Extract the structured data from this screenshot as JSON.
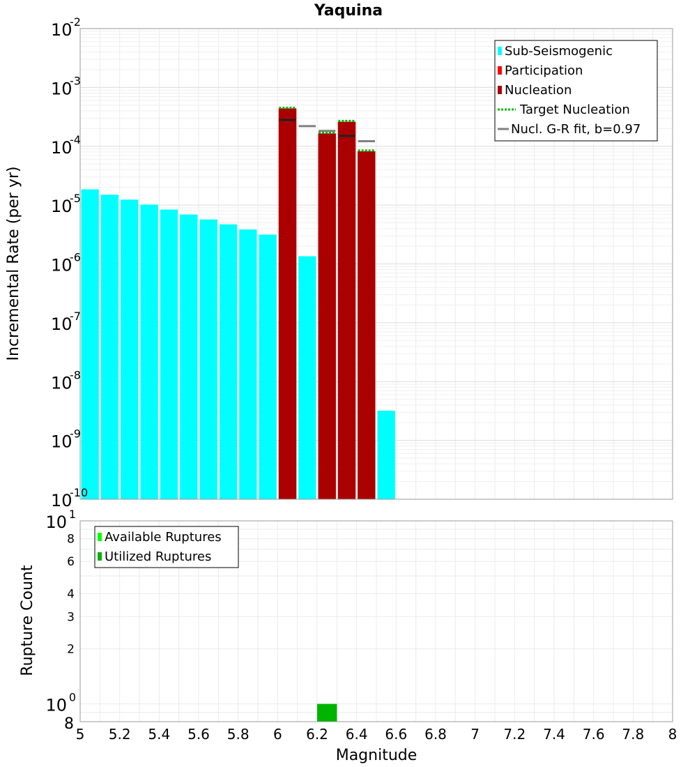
{
  "chart_data": [
    {
      "type": "bar",
      "title": "Yaquina",
      "ylabel": "Incremental Rate (per yr)",
      "xlabel": "",
      "y_scale": "log",
      "ylim": [
        1e-10,
        0.01
      ],
      "xlim": [
        5,
        8
      ],
      "y_ticks": [
        {
          "base": "10",
          "exp": "-2",
          "value": 0.01
        },
        {
          "base": "10",
          "exp": "-3",
          "value": 0.001
        },
        {
          "base": "10",
          "exp": "-4",
          "value": 0.0001
        },
        {
          "base": "10",
          "exp": "-5",
          "value": 1e-05
        },
        {
          "base": "10",
          "exp": "-6",
          "value": 1e-06
        },
        {
          "base": "10",
          "exp": "-7",
          "value": 1e-07
        },
        {
          "base": "10",
          "exp": "-8",
          "value": 1e-08
        },
        {
          "base": "10",
          "exp": "-9",
          "value": 1e-09
        },
        {
          "base": "10",
          "exp": "-10",
          "value": 1e-10
        }
      ],
      "bin_width": 0.1,
      "legend_position": "top-right",
      "legend": [
        {
          "label": "Sub-Seismogenic",
          "color": "#00ffff",
          "style": "bar"
        },
        {
          "label": "Participation",
          "color": "#ff0000",
          "style": "bar"
        },
        {
          "label": "Nucleation",
          "color": "#aa0000",
          "style": "bar"
        },
        {
          "label": "Target Nucleation",
          "color": "#00bb00",
          "style": "dotted"
        },
        {
          "label": "Nucl. G-R fit, b=0.97",
          "color": "#808080",
          "style": "line"
        }
      ],
      "series": [
        {
          "name": "Sub-Seismogenic",
          "color": "#00ffff",
          "x": [
            5.05,
            5.15,
            5.25,
            5.35,
            5.45,
            5.55,
            5.65,
            5.75,
            5.85,
            5.95,
            6.15,
            6.55
          ],
          "values": [
            1.85e-05,
            1.5e-05,
            1.24e-05,
            1.02e-05,
            8.4e-06,
            6.9e-06,
            5.7e-06,
            4.7e-06,
            3.85e-06,
            3.15e-06,
            1.35e-06,
            3.2e-09
          ]
        },
        {
          "name": "Participation",
          "color": "#ff0000",
          "x": [
            6.05,
            6.25,
            6.35,
            6.45
          ],
          "values": [
            0.00044,
            0.000165,
            0.00026,
            8.2e-05
          ]
        },
        {
          "name": "Nucleation",
          "color": "#aa0000",
          "x": [
            6.05,
            6.25,
            6.35,
            6.45
          ],
          "values": [
            0.00044,
            0.000165,
            0.00026,
            8.2e-05
          ]
        },
        {
          "name": "Target Nucleation",
          "color": "#00bb00",
          "x": [
            6.05,
            6.25,
            6.35,
            6.45
          ],
          "values": [
            0.00045,
            0.00017,
            0.00027,
            8.5e-05
          ]
        },
        {
          "name": "Nucl. G-R fit, b=0.97",
          "color": "#808080",
          "x": [
            6.05,
            6.15,
            6.25,
            6.35,
            6.45
          ],
          "values": [
            0.00028,
            0.00022,
            0.000182,
            0.00015,
            0.000122
          ]
        }
      ]
    },
    {
      "type": "bar",
      "title": "",
      "ylabel": "Rupture Count",
      "xlabel": "Magnitude",
      "y_scale": "log",
      "ylim": [
        0.8,
        10
      ],
      "xlim": [
        5,
        8
      ],
      "x_ticks": [
        "5",
        "5.2",
        "5.4",
        "5.6",
        "5.8",
        "6",
        "6.2",
        "6.4",
        "6.6",
        "6.8",
        "7",
        "7.2",
        "7.4",
        "7.6",
        "7.8",
        "8"
      ],
      "y_ticks": [
        {
          "label": "10",
          "exp": "1",
          "value": 10
        },
        {
          "label": "8",
          "exp": "",
          "value": 8
        },
        {
          "label": "6",
          "exp": "",
          "value": 6
        },
        {
          "label": "4",
          "exp": "",
          "value": 4
        },
        {
          "label": "3",
          "exp": "",
          "value": 3
        },
        {
          "label": "2",
          "exp": "",
          "value": 2
        },
        {
          "label": "10",
          "exp": "0",
          "value": 1
        },
        {
          "label": "8",
          "exp": "",
          "value": 0.8
        }
      ],
      "legend_position": "top-left",
      "legend": [
        {
          "label": "Available Ruptures",
          "color": "#00ff00",
          "style": "bar"
        },
        {
          "label": "Utilized Ruptures",
          "color": "#00b400",
          "style": "bar"
        }
      ],
      "series": [
        {
          "name": "Available Ruptures",
          "color": "#00ff00",
          "x": [
            6.25
          ],
          "values": [
            1
          ]
        },
        {
          "name": "Utilized Ruptures",
          "color": "#00b400",
          "x": [
            6.25
          ],
          "values": [
            1
          ]
        }
      ]
    }
  ]
}
